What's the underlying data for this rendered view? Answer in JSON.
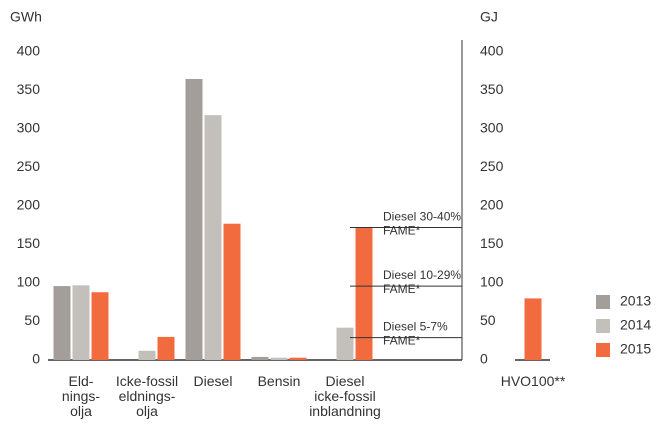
{
  "chart_data": [
    {
      "type": "bar",
      "ylabel": "GWh",
      "categories": [
        "Eld-\nnings-\nolja",
        "Icke-fossil\neldnings-\nolja",
        "Diesel",
        "Bensin",
        "Diesel\nicke-fossil\ninblandning"
      ],
      "series": [
        {
          "name": "2013",
          "color": "#a39e99",
          "values": [
            96,
            0,
            365,
            4,
            0
          ]
        },
        {
          "name": "2014",
          "color": "#c3c0bc",
          "values": [
            97,
            12,
            318,
            3,
            42
          ]
        },
        {
          "name": "2015",
          "color": "#f26b3f",
          "values": [
            88,
            30,
            177,
            3,
            172
          ]
        }
      ],
      "ylim": [
        0,
        400
      ],
      "yticks": [
        0,
        50,
        100,
        150,
        200,
        250,
        300,
        350,
        400
      ],
      "annotations": [
        {
          "text": "Diesel 30-40%\nFAME*",
          "value": 172
        },
        {
          "text": "Diesel 10-29%\nFAME*",
          "value": 96
        },
        {
          "text": "Diesel 5-7%\nFAME*",
          "value": 29
        }
      ],
      "legend": "right"
    },
    {
      "type": "bar",
      "ylabel": "GJ",
      "categories": [
        "HVO100**"
      ],
      "series": [
        {
          "color": "#f26b3f",
          "values": [
            80
          ]
        }
      ],
      "ylim": [
        0,
        400
      ],
      "yticks": [
        0,
        50,
        100,
        150,
        200,
        250,
        300,
        350,
        400
      ]
    }
  ]
}
